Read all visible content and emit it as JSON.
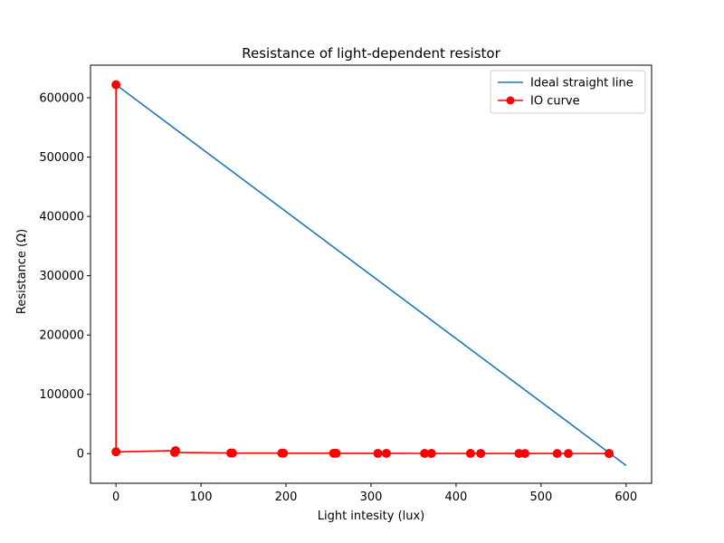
{
  "chart_data": {
    "type": "line",
    "title": "Resistance of light-dependent resistor",
    "xlabel": "Light intesity (lux)",
    "ylabel": "Resistance (Ω)",
    "xlim": [
      -30,
      630
    ],
    "ylim": [
      -50000,
      655000
    ],
    "xticks": [
      0,
      100,
      200,
      300,
      400,
      500,
      600
    ],
    "yticks": [
      0,
      100000,
      200000,
      300000,
      400000,
      500000,
      600000
    ],
    "xtick_labels": [
      "0",
      "100",
      "200",
      "300",
      "400",
      "500",
      "600"
    ],
    "ytick_labels": [
      "0",
      "100000",
      "200000",
      "300000",
      "400000",
      "500000",
      "600000"
    ],
    "grid": false,
    "legend_position": "top-right",
    "series": [
      {
        "name": "Ideal straight line",
        "color": "#1f77b4",
        "marker": "none",
        "x": [
          0,
          600
        ],
        "y": [
          622000,
          -20000
        ]
      },
      {
        "name": "IO curve",
        "color": "#ff0000",
        "marker": "circle",
        "x": [
          0,
          0,
          70,
          69,
          135,
          137,
          195,
          197,
          256,
          259,
          308,
          318,
          363,
          371,
          417,
          429,
          474,
          481,
          519,
          532,
          580,
          580
        ],
        "y": [
          622000,
          3000,
          5000,
          2000,
          1000,
          900,
          800,
          700,
          600,
          500,
          400,
          400,
          350,
          300,
          300,
          250,
          250,
          200,
          200,
          180,
          150,
          150
        ]
      }
    ]
  }
}
